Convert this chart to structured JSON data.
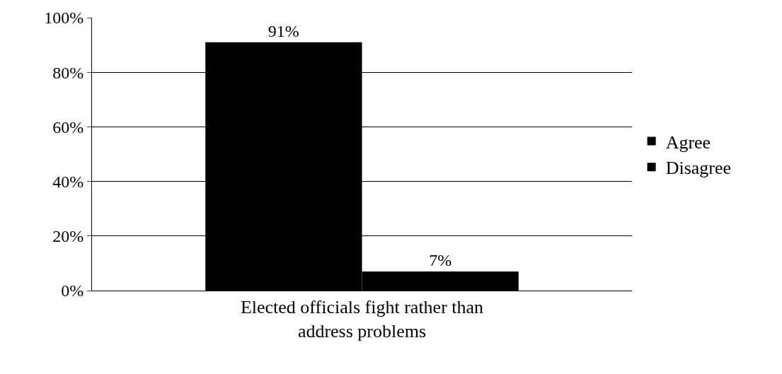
{
  "chart_data": {
    "type": "bar",
    "categories": [
      "Elected officials fight rather than address problems"
    ],
    "series": [
      {
        "name": "Agree",
        "color": "#000000",
        "values": [
          91
        ],
        "value_labels": [
          "91%"
        ]
      },
      {
        "name": "Disagree",
        "color": "#000000",
        "values": [
          7
        ],
        "value_labels": [
          "7%"
        ]
      }
    ],
    "ylim": [
      0,
      100
    ],
    "yticks": [
      {
        "value": 0,
        "label": "0%"
      },
      {
        "value": 20,
        "label": "20%"
      },
      {
        "value": 40,
        "label": "40%"
      },
      {
        "value": 60,
        "label": "60%"
      },
      {
        "value": 80,
        "label": "80%"
      },
      {
        "value": 100,
        "label": "100%"
      }
    ],
    "grid": "y",
    "legend": "right"
  }
}
